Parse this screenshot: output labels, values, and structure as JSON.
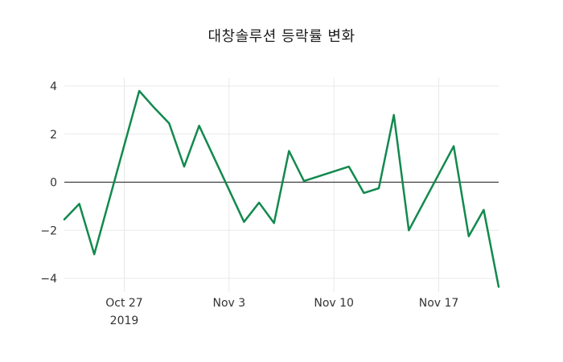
{
  "title": "대창솔루션 등락률 변화",
  "colors": {
    "background": "#ffffff",
    "line": "#12894e",
    "zero_line": "#3d3d3d",
    "grid": "#e9e9e9",
    "tick_text": "#333333",
    "title_text": "#1c1c1c"
  },
  "chart_data": {
    "type": "line",
    "title": "대창솔루션 등락률 변화",
    "xlabel": "",
    "ylabel": "",
    "legend": null,
    "grid": true,
    "ylim": [
      -4.55,
      4.35
    ],
    "y_ticks": [
      {
        "value": 4,
        "label": "4"
      },
      {
        "value": 2,
        "label": "2"
      },
      {
        "value": 0,
        "label": "0"
      },
      {
        "value": -2,
        "label": "−2"
      },
      {
        "value": -4,
        "label": "−4"
      }
    ],
    "x_ticks": [
      {
        "day": 4,
        "labels": [
          "Oct 27",
          "2019"
        ]
      },
      {
        "day": 11,
        "labels": [
          "Nov 3"
        ]
      },
      {
        "day": 18,
        "labels": [
          "Nov 10"
        ]
      },
      {
        "day": 25,
        "labels": [
          "Nov 17"
        ]
      }
    ],
    "points": [
      {
        "date": "Oct 23",
        "day": 0,
        "value": -1.55
      },
      {
        "date": "Oct 24",
        "day": 1,
        "value": -0.9
      },
      {
        "date": "Oct 25",
        "day": 2,
        "value": -3.0
      },
      {
        "date": "Oct 28",
        "day": 5,
        "value": 3.8
      },
      {
        "date": "Oct 29",
        "day": 6,
        "value": 3.1
      },
      {
        "date": "Oct 30",
        "day": 7,
        "value": 2.45
      },
      {
        "date": "Oct 31",
        "day": 8,
        "value": 0.65
      },
      {
        "date": "Nov 1",
        "day": 9,
        "value": 2.35
      },
      {
        "date": "Nov 4",
        "day": 12,
        "value": -1.65
      },
      {
        "date": "Nov 5",
        "day": 13,
        "value": -0.85
      },
      {
        "date": "Nov 6",
        "day": 14,
        "value": -1.7
      },
      {
        "date": "Nov 7",
        "day": 15,
        "value": 1.3
      },
      {
        "date": "Nov 8",
        "day": 16,
        "value": 0.05
      },
      {
        "date": "Nov 11",
        "day": 19,
        "value": 0.65
      },
      {
        "date": "Nov 12",
        "day": 20,
        "value": -0.45
      },
      {
        "date": "Nov 13",
        "day": 21,
        "value": -0.25
      },
      {
        "date": "Nov 14",
        "day": 22,
        "value": 2.8
      },
      {
        "date": "Nov 15",
        "day": 23,
        "value": -2.0
      },
      {
        "date": "Nov 18",
        "day": 26,
        "value": 1.5
      },
      {
        "date": "Nov 19",
        "day": 27,
        "value": -2.25
      },
      {
        "date": "Nov 20",
        "day": 28,
        "value": -1.15
      },
      {
        "date": "Nov 21",
        "day": 29,
        "value": -4.35
      }
    ]
  }
}
